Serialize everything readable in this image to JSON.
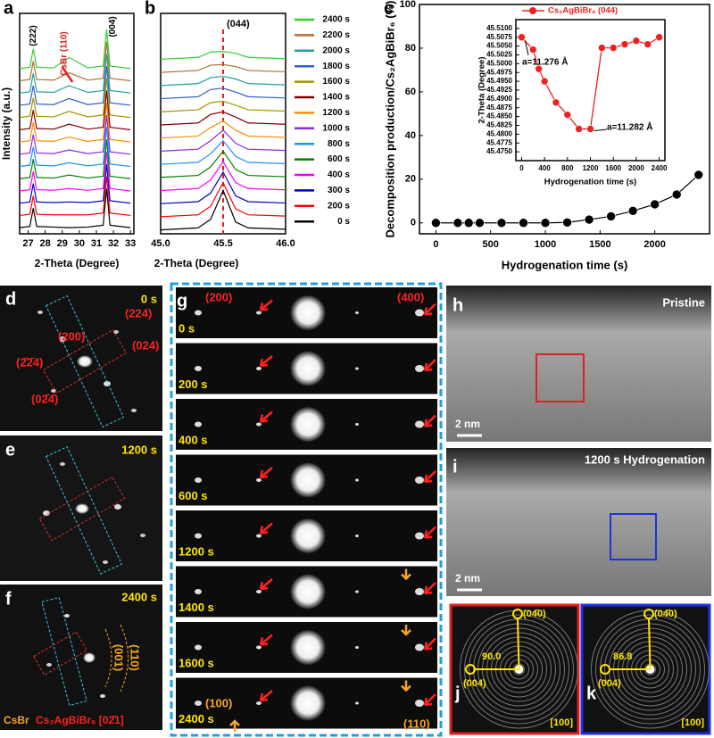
{
  "chart_data": [
    {
      "type": "line",
      "panel_label": "a",
      "xlabel": "2-Theta (Degree)",
      "ylabel": "Intensity (a.u.)",
      "annotations": [
        "(222)",
        "CsBr (110)",
        "(004)"
      ],
      "x": [
        26.5,
        27.1,
        27.3,
        27.5,
        28.5,
        29.4,
        30.5,
        31.4,
        31.6,
        31.8,
        33
      ],
      "xlim": [
        26.5,
        33.2
      ],
      "xticks": [
        27,
        28,
        29,
        30,
        31,
        32,
        33
      ],
      "ylim": [
        -0.5,
        17.5
      ],
      "series": [
        {
          "color": "#000000",
          "values": [
            0,
            0.1,
            1.6,
            0.1,
            0.05,
            0,
            0.05,
            0.2,
            3.2,
            0.2,
            0
          ]
        },
        {
          "color": "#ff0000",
          "values": [
            1,
            1.1,
            2.6,
            1.1,
            1.05,
            1.05,
            1.05,
            1.2,
            4.2,
            1.2,
            1
          ]
        },
        {
          "color": "#0000cd",
          "values": [
            2,
            2.1,
            3.6,
            2.1,
            2.05,
            2.1,
            2.05,
            2.2,
            5.2,
            2.2,
            2
          ]
        },
        {
          "color": "#ff00ff",
          "values": [
            3,
            3.1,
            4.6,
            3.1,
            3.05,
            3.2,
            3.05,
            3.2,
            6.2,
            3.2,
            3
          ]
        },
        {
          "color": "#008000",
          "values": [
            4,
            4.1,
            5.6,
            4.1,
            4.05,
            4.3,
            4.05,
            4.2,
            7.2,
            4.2,
            4
          ]
        },
        {
          "color": "#1e90ff",
          "values": [
            5,
            5.1,
            6.6,
            5.1,
            5.05,
            5.3,
            5.05,
            5.2,
            8.2,
            5.2,
            5
          ]
        },
        {
          "color": "#8a2be2",
          "values": [
            6,
            6.1,
            7.6,
            6.1,
            6.05,
            6.35,
            6.05,
            6.2,
            9.2,
            6.2,
            6
          ]
        },
        {
          "color": "#ff8c00",
          "values": [
            7,
            7.1,
            8.6,
            7.1,
            7.05,
            7.4,
            7.05,
            7.2,
            10.2,
            7.2,
            7
          ]
        },
        {
          "color": "#800000",
          "values": [
            8,
            8.1,
            9.6,
            8.1,
            8.05,
            8.45,
            8.05,
            8.2,
            11.2,
            8.2,
            8
          ]
        },
        {
          "color": "#999900",
          "values": [
            9,
            9.1,
            10.6,
            9.1,
            9.05,
            9.5,
            9.05,
            9.2,
            12.2,
            9.2,
            9
          ]
        },
        {
          "color": "#3060c0",
          "values": [
            10,
            10.1,
            11.6,
            10.1,
            10.05,
            10.55,
            10.05,
            10.2,
            13.2,
            10.2,
            10
          ]
        },
        {
          "color": "#20a0a0",
          "values": [
            11,
            11.1,
            12.6,
            11.1,
            11.05,
            11.6,
            11.05,
            11.2,
            14.2,
            11.2,
            11
          ]
        },
        {
          "color": "#b07030",
          "values": [
            12,
            12.1,
            13.6,
            12.1,
            12.05,
            12.65,
            12.05,
            12.2,
            15.2,
            12.2,
            12
          ]
        },
        {
          "color": "#33cc33",
          "values": [
            13,
            13.1,
            14.6,
            13.1,
            13.05,
            13.9,
            13.05,
            13.2,
            16.2,
            13.2,
            13
          ]
        }
      ]
    },
    {
      "type": "line",
      "panel_label": "b",
      "xlabel": "2-Theta (Degree)",
      "annotations": [
        "(044)"
      ],
      "x": [
        45.0,
        45.3,
        45.4,
        45.5,
        45.6,
        45.7,
        46.0
      ],
      "xlim": [
        45.0,
        46.0
      ],
      "xticks": [
        {
          "value": 45,
          "label": "45.0"
        },
        {
          "value": 45.5,
          "label": "45.5"
        },
        {
          "value": 46,
          "label": "46.0"
        }
      ],
      "ylim": [
        -0.3,
        16.5
      ],
      "vline": 45.5,
      "series": [
        {
          "name": "0 s",
          "color": "#000000",
          "values": [
            0,
            0.15,
            0.8,
            3.0,
            0.6,
            0.15,
            0.05
          ]
        },
        {
          "name": "200 s",
          "color": "#ff0000",
          "values": [
            1,
            1.15,
            1.8,
            3.6,
            1.6,
            1.15,
            1.05
          ]
        },
        {
          "name": "300 s",
          "color": "#0000cd",
          "values": [
            2,
            2.15,
            2.8,
            4.4,
            2.6,
            2.15,
            2.05
          ]
        },
        {
          "name": "400 s",
          "color": "#ff00ff",
          "values": [
            3,
            3.15,
            3.8,
            5.2,
            3.6,
            3.15,
            3.05
          ]
        },
        {
          "name": "600 s",
          "color": "#008000",
          "values": [
            4,
            4.15,
            4.8,
            6.0,
            4.6,
            4.15,
            4.05
          ]
        },
        {
          "name": "800 s",
          "color": "#1e90ff",
          "values": [
            5,
            5.15,
            5.8,
            6.8,
            5.6,
            5.15,
            5.05
          ]
        },
        {
          "name": "1000 s",
          "color": "#8a2be2",
          "values": [
            6,
            6.15,
            6.8,
            7.6,
            6.6,
            6.15,
            6.05
          ]
        },
        {
          "name": "1200 s",
          "color": "#ff8c00",
          "values": [
            7,
            7.15,
            7.8,
            8.3,
            7.6,
            7.15,
            7.05
          ]
        },
        {
          "name": "1400 s",
          "color": "#800000",
          "values": [
            8,
            8.15,
            8.8,
            9.0,
            8.6,
            8.15,
            8.05
          ]
        },
        {
          "name": "1600 s",
          "color": "#999900",
          "values": [
            9,
            9.15,
            9.7,
            9.8,
            9.5,
            9.15,
            9.05
          ]
        },
        {
          "name": "1800 s",
          "color": "#3060c0",
          "values": [
            10,
            10.15,
            10.7,
            10.8,
            10.5,
            10.15,
            10.05
          ]
        },
        {
          "name": "2000 s",
          "color": "#20a0a0",
          "values": [
            11,
            11.15,
            11.6,
            11.7,
            11.5,
            11.15,
            11.05
          ]
        },
        {
          "name": "2200 s",
          "color": "#b07030",
          "values": [
            12,
            12.15,
            12.55,
            12.6,
            12.45,
            12.15,
            12.05
          ]
        },
        {
          "name": "2400 s",
          "color": "#33cc33",
          "values": [
            13,
            13.15,
            13.55,
            13.6,
            13.45,
            13.15,
            13.05
          ]
        }
      ]
    },
    {
      "type": "line",
      "panel_label": "c",
      "xlabel": "Hydrogenation time (s)",
      "ylabel": "Decomposition production/Cs₂AgBiBr₆ (%)",
      "x": [
        0,
        200,
        300,
        400,
        600,
        800,
        1000,
        1200,
        1400,
        1600,
        1800,
        2000,
        2200,
        2400
      ],
      "xlim": [
        -150,
        2500
      ],
      "xticks": [
        0,
        500,
        1000,
        1500,
        2000
      ],
      "ylim": [
        -5,
        100
      ],
      "yticks": [
        0,
        20,
        40,
        60,
        80,
        100
      ],
      "markers": true,
      "series": [
        {
          "color": "#000000",
          "values": [
            0,
            0,
            0,
            0,
            0,
            0,
            0,
            0.2,
            1.5,
            3,
            5.5,
            8.5,
            13,
            22
          ]
        }
      ]
    },
    {
      "type": "line",
      "xlabel": "Hydrogenation time (s)",
      "ylabel": "2-Theta (Degree)",
      "annotations": [
        "a=11.276 Å",
        "a=11.282 Å"
      ],
      "x": [
        0,
        200,
        300,
        400,
        600,
        800,
        1000,
        1200,
        1400,
        1600,
        1800,
        2000,
        2200,
        2400
      ],
      "xlim": [
        -100,
        2500
      ],
      "xticks": [
        0,
        400,
        800,
        1200,
        1600,
        2000,
        2400
      ],
      "ylim": [
        45.4725,
        45.5125
      ],
      "yticks": [
        {
          "value": 45.475,
          "label": "45.4750"
        },
        {
          "value": 45.4775,
          "label": "45.4775"
        },
        {
          "value": 45.48,
          "label": "45.4800"
        },
        {
          "value": 45.4825,
          "label": "45.4825"
        },
        {
          "value": 45.485,
          "label": "45.4850"
        },
        {
          "value": 45.4875,
          "label": "45.4875"
        },
        {
          "value": 45.49,
          "label": "45.4900"
        },
        {
          "value": 45.4925,
          "label": "45.4925"
        },
        {
          "value": 45.495,
          "label": "45.4950"
        },
        {
          "value": 45.4975,
          "label": "45.4975"
        },
        {
          "value": 45.5,
          "label": "45.5000"
        },
        {
          "value": 45.5025,
          "label": "45.5025"
        },
        {
          "value": 45.505,
          "label": "45.5050"
        },
        {
          "value": 45.5075,
          "label": "45.5075"
        },
        {
          "value": 45.51,
          "label": "45.5100"
        }
      ],
      "markers": true,
      "legend": "upper left",
      "series": [
        {
          "name": "Cs₂AgBiBr₆ (044)",
          "color": "#ee2020",
          "values": [
            45.5075,
            45.504,
            45.4985,
            45.495,
            45.489,
            45.4855,
            45.4815,
            45.4815,
            45.5045,
            45.5045,
            45.5055,
            45.5065,
            45.5055,
            45.5075
          ]
        }
      ]
    }
  ],
  "images": {
    "d": {
      "label": "d",
      "time": "0 s",
      "indices": [
        "(224)",
        "(200)",
        "(024)",
        "(2̄2̄4)",
        "(02̄4̄)"
      ]
    },
    "e": {
      "label": "e",
      "time": "1200 s"
    },
    "f": {
      "label": "f",
      "time": "2400 s",
      "indices": [
        "(001)",
        "(110)"
      ],
      "caption_1": "CsBr",
      "caption_2": "Cs₂AgBiBr₆ [02̄1]"
    },
    "g": {
      "label": "g",
      "indices_top": [
        "(200)",
        "(400)"
      ],
      "times": [
        "0 s",
        "200 s",
        "400 s",
        "600 s",
        "1200 s",
        "1400 s",
        "1600 s",
        "2400 s"
      ],
      "indices_bottom": [
        "(100)",
        "(110)"
      ]
    },
    "h": {
      "label": "h",
      "title": "Pristine",
      "scale": "2 nm"
    },
    "i": {
      "label": "i",
      "title": "1200 s Hydrogenation",
      "scale": "2 nm"
    },
    "j": {
      "label": "j",
      "indices": [
        "(04̄0)",
        "(004)"
      ],
      "angle": "90.0",
      "zone": "[100]"
    },
    "k": {
      "label": "k",
      "indices": [
        "(04̄0)",
        "(004)"
      ],
      "angle": "86.8",
      "zone": "[100]"
    }
  }
}
